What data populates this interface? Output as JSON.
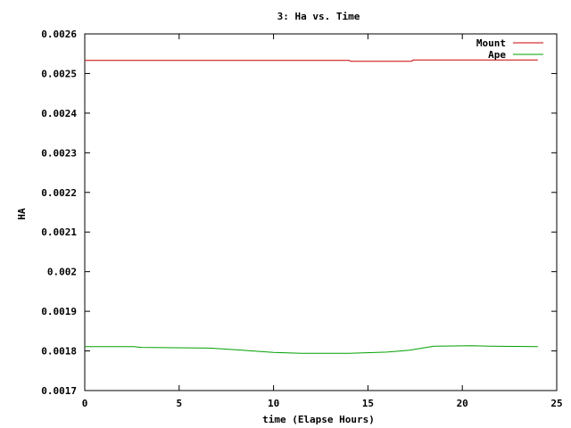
{
  "chart_data": {
    "type": "line",
    "title": "3: Ha vs. Time",
    "xlabel": "time (Elapse Hours)",
    "ylabel": "HA",
    "xlim": [
      0,
      25
    ],
    "ylim": [
      0.0017,
      0.0026
    ],
    "xticks": [
      0,
      5,
      10,
      15,
      20,
      25
    ],
    "xtick_labels": [
      "0",
      "5",
      "10",
      "15",
      "20",
      "25"
    ],
    "yticks": [
      0.0017,
      0.0018,
      0.0019,
      0.002,
      0.0021,
      0.0022,
      0.0023,
      0.0024,
      0.0025,
      0.0026
    ],
    "ytick_labels": [
      "0.0017",
      "0.0018",
      "0.0019",
      "0.002",
      "0.0021",
      "0.0022",
      "0.0023",
      "0.0024",
      "0.0025",
      "0.0026"
    ],
    "grid": false,
    "legend_position": "top-right",
    "series": [
      {
        "name": "Mount",
        "color": "#cc0000",
        "x": [
          0,
          14,
          14.1,
          17.3,
          17.4,
          24
        ],
        "y": [
          0.002533,
          0.002533,
          0.002531,
          0.002531,
          0.002534,
          0.002534
        ]
      },
      {
        "name": "Ape",
        "color": "#00a000",
        "x": [
          0,
          2.6,
          3,
          6.6,
          8,
          10,
          11.5,
          14,
          16,
          17.2,
          18.5,
          20.5,
          21.5,
          24
        ],
        "y": [
          0.001811,
          0.001811,
          0.001809,
          0.001807,
          0.001803,
          0.001796,
          0.001794,
          0.001794,
          0.001797,
          0.001802,
          0.001812,
          0.001813,
          0.001812,
          0.001811
        ]
      }
    ]
  }
}
